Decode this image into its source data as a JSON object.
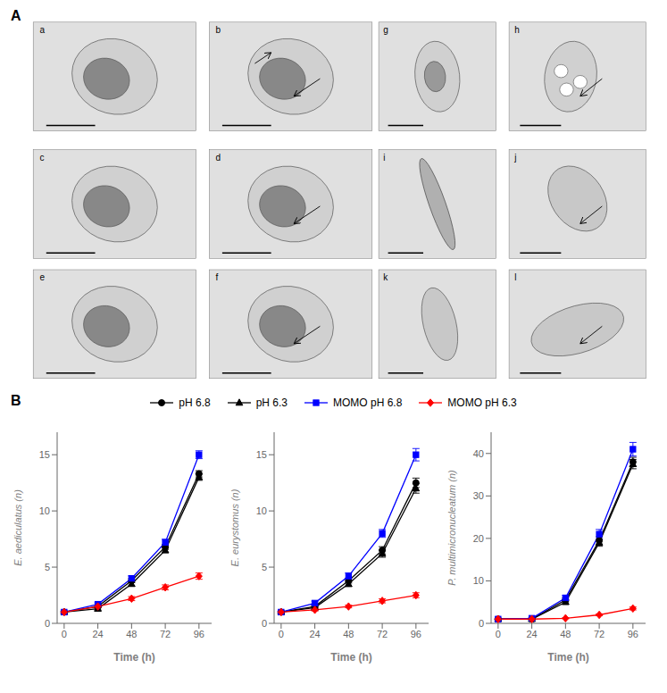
{
  "chart_data": [
    {
      "type": "image_grid",
      "title": "A",
      "annotations": [
        "a",
        "b",
        "g",
        "h",
        "c",
        "d",
        "i",
        "j",
        "e",
        "f",
        "k",
        "l"
      ]
    },
    {
      "type": "line",
      "title": "B",
      "x_label": "Time (h)",
      "y_label": "E. aediculatus (n)",
      "x": [
        0,
        24,
        48,
        72,
        96
      ],
      "xlim": [
        -5,
        105
      ],
      "xticks": [
        0,
        24,
        48,
        72,
        96
      ],
      "ylim": [
        0,
        17
      ],
      "yticks": [
        0,
        5,
        10,
        15
      ],
      "grid": false,
      "series": [
        {
          "name": "pH 6.8",
          "color": "black",
          "marker": "circle",
          "line_style": "solid",
          "values": [
            1.0,
            1.5,
            3.8,
            6.8,
            13.3
          ],
          "errors": [
            0.08,
            0.12,
            0.18,
            0.22,
            0.28
          ]
        },
        {
          "name": "pH 6.3",
          "color": "black",
          "marker": "triangle",
          "line_style": "solid",
          "values": [
            1.0,
            1.3,
            3.5,
            6.5,
            13.0
          ],
          "errors": [
            0.08,
            0.12,
            0.18,
            0.22,
            0.28
          ]
        },
        {
          "name": "MOMO pH 6.8",
          "color": "blue",
          "marker": "square",
          "line_style": "solid",
          "values": [
            1.0,
            1.7,
            4.0,
            7.2,
            15.0
          ],
          "errors": [
            0.08,
            0.12,
            0.22,
            0.28,
            0.35
          ]
        },
        {
          "name": "MOMO pH 6.3",
          "color": "red",
          "marker": "diamond",
          "line_style": "solid",
          "values": [
            1.0,
            1.5,
            2.2,
            3.2,
            4.2
          ],
          "errors": [
            0.08,
            0.12,
            0.18,
            0.22,
            0.28
          ]
        }
      ]
    },
    {
      "type": "line",
      "x_label": "Time (h)",
      "y_label": "E. eurystomus (n)",
      "x": [
        0,
        24,
        48,
        72,
        96
      ],
      "xlim": [
        -5,
        105
      ],
      "xticks": [
        0,
        24,
        48,
        72,
        96
      ],
      "ylim": [
        0,
        17
      ],
      "yticks": [
        0,
        5,
        10,
        15
      ],
      "grid": false,
      "legend": "upper center",
      "series": [
        {
          "name": "pH 6.8",
          "color": "black",
          "marker": "circle",
          "line_style": "solid",
          "values": [
            1.0,
            1.5,
            3.8,
            6.5,
            12.5
          ],
          "errors": [
            0.08,
            0.12,
            0.22,
            0.32,
            0.42
          ]
        },
        {
          "name": "pH 6.3",
          "color": "black",
          "marker": "triangle",
          "line_style": "solid",
          "values": [
            1.0,
            1.4,
            3.5,
            6.2,
            12.0
          ],
          "errors": [
            0.08,
            0.12,
            0.22,
            0.32,
            0.42
          ]
        },
        {
          "name": "MOMO pH 6.8",
          "color": "blue",
          "marker": "square",
          "line_style": "solid",
          "values": [
            1.0,
            1.8,
            4.2,
            8.0,
            15.0
          ],
          "errors": [
            0.08,
            0.18,
            0.28,
            0.35,
            0.55
          ]
        },
        {
          "name": "MOMO pH 6.3",
          "color": "red",
          "marker": "diamond",
          "line_style": "solid",
          "values": [
            1.0,
            1.2,
            1.5,
            2.0,
            2.5
          ],
          "errors": [
            0.08,
            0.1,
            0.12,
            0.18,
            0.22
          ]
        }
      ]
    },
    {
      "type": "line",
      "x_label": "Time (h)",
      "y_label": "P. multimicronucleatum (n)",
      "x": [
        0,
        24,
        48,
        72,
        96
      ],
      "xlim": [
        -5,
        105
      ],
      "xticks": [
        0,
        24,
        48,
        72,
        96
      ],
      "ylim": [
        0,
        45
      ],
      "yticks": [
        0,
        10,
        20,
        30,
        40
      ],
      "grid": false,
      "series": [
        {
          "name": "pH 6.8",
          "color": "black",
          "marker": "circle",
          "line_style": "solid",
          "values": [
            1.0,
            1.0,
            5.5,
            19.5,
            38.0
          ],
          "errors": [
            0.08,
            0.12,
            0.45,
            0.85,
            1.1
          ]
        },
        {
          "name": "pH 6.3",
          "color": "black",
          "marker": "triangle",
          "line_style": "solid",
          "values": [
            1.0,
            1.0,
            5.0,
            19.0,
            37.5
          ],
          "errors": [
            0.08,
            0.12,
            0.45,
            0.85,
            1.1
          ]
        },
        {
          "name": "MOMO pH 6.8",
          "color": "blue",
          "marker": "square",
          "line_style": "solid",
          "values": [
            1.0,
            1.2,
            6.0,
            21.0,
            41.0
          ],
          "errors": [
            0.08,
            0.18,
            0.55,
            1.1,
            1.6
          ]
        },
        {
          "name": "MOMO pH 6.3",
          "color": "red",
          "marker": "diamond",
          "line_style": "solid",
          "values": [
            1.0,
            1.0,
            1.2,
            2.0,
            3.5
          ],
          "errors": [
            0.08,
            0.1,
            0.12,
            0.22,
            0.35
          ]
        }
      ]
    }
  ]
}
